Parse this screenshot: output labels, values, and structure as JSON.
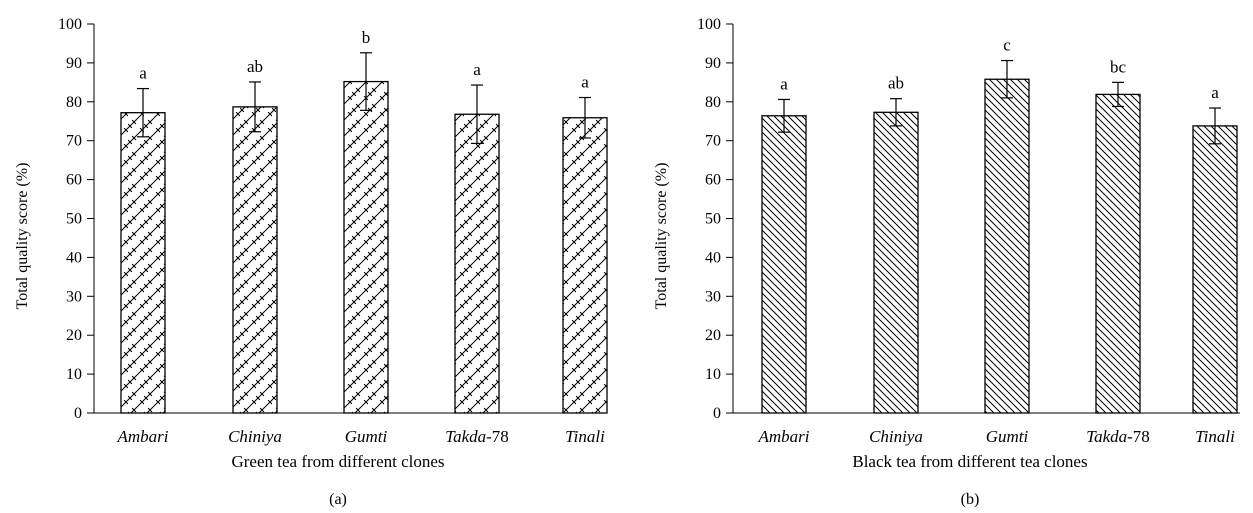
{
  "chart_data": [
    {
      "type": "bar",
      "panel_label": "(a)",
      "categories": [
        "Ambari",
        "Chiniya",
        "Gumti",
        "Takda",
        "Tinali"
      ],
      "category_suffix": [
        "",
        "",
        "",
        "-78",
        ""
      ],
      "values": [
        77.2,
        78.7,
        85.2,
        76.8,
        75.9
      ],
      "errors": [
        6.2,
        6.4,
        7.4,
        7.5,
        5.2
      ],
      "significance": [
        "a",
        "ab",
        "b",
        "a",
        "a"
      ],
      "xlabel": "Green tea from different clones",
      "ylabel": "Total quality score (%)",
      "ylim": [
        0,
        100
      ],
      "yticks": [
        0,
        10,
        20,
        30,
        40,
        50,
        60,
        70,
        80,
        90,
        100
      ],
      "pattern": "brick-crosshatch"
    },
    {
      "type": "bar",
      "panel_label": "(b)",
      "categories": [
        "Ambari",
        "Chiniya",
        "Gumti",
        "Takda",
        "Tinali"
      ],
      "category_suffix": [
        "",
        "",
        "",
        "-78",
        ""
      ],
      "values": [
        76.4,
        77.3,
        85.8,
        81.9,
        73.8
      ],
      "errors": [
        4.2,
        3.5,
        4.8,
        3.1,
        4.6
      ],
      "significance": [
        "a",
        "ab",
        "c",
        "bc",
        "a"
      ],
      "xlabel": "Black tea from different tea clones",
      "ylabel": "Total quality score (%)",
      "ylim": [
        0,
        100
      ],
      "yticks": [
        0,
        10,
        20,
        30,
        40,
        50,
        60,
        70,
        80,
        90,
        100
      ],
      "pattern": "diagonal-hatch"
    }
  ],
  "colors": {
    "ink": "#000000",
    "background": "#ffffff"
  }
}
